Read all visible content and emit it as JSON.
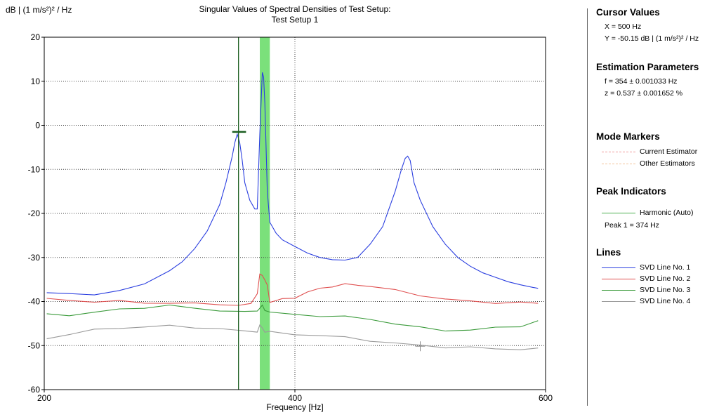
{
  "chart_data": {
    "type": "line",
    "title": "Singular Values of Spectral Densities of Test Setup:",
    "subtitle": "Test Setup 1",
    "ylabel": "dB | (1 m/s²)² / Hz",
    "xlabel": "Frequency [Hz]",
    "xlim": [
      200,
      600
    ],
    "ylim": [
      -60,
      20
    ],
    "xticks": [
      200,
      400,
      600
    ],
    "yticks": [
      20,
      10,
      0,
      -10,
      -20,
      -30,
      -40,
      -50,
      -60
    ],
    "grid": true,
    "cursor_x": 354,
    "cursor_line_x": 355,
    "highlight_band": [
      372,
      380
    ],
    "dotted_marker_x": 400,
    "peak_marker": {
      "x1": 350,
      "x2": 361,
      "y": -1.5
    },
    "series": [
      {
        "name": "SVD Line No. 1",
        "color": "#2b3fe0",
        "x": [
          202,
          220,
          240,
          260,
          280,
          300,
          310,
          320,
          330,
          340,
          345,
          350,
          352,
          354,
          356,
          358,
          360,
          364,
          368,
          370,
          372,
          374,
          375,
          376,
          378,
          380,
          385,
          390,
          400,
          410,
          420,
          430,
          440,
          450,
          460,
          470,
          480,
          485,
          488,
          490,
          492,
          495,
          500,
          510,
          520,
          530,
          540,
          550,
          560,
          570,
          580,
          590,
          594
        ],
        "y": [
          -38,
          -38.2,
          -38.5,
          -37.5,
          -36,
          -33,
          -31,
          -28,
          -24,
          -18,
          -13,
          -7,
          -4,
          -2,
          -4,
          -8,
          -13,
          -17,
          -19,
          -19,
          -2,
          12,
          11,
          5,
          -15,
          -22,
          -24.5,
          -26,
          -27.5,
          -29,
          -30,
          -30.5,
          -30.6,
          -30,
          -27,
          -23,
          -15,
          -10,
          -7.5,
          -7,
          -8,
          -13,
          -17,
          -23,
          -27,
          -30,
          -32,
          -33.5,
          -34.5,
          -35.5,
          -36.2,
          -36.8,
          -37
        ]
      },
      {
        "name": "SVD Line No. 2",
        "color": "#e05050",
        "x": [
          202,
          220,
          240,
          260,
          280,
          300,
          320,
          340,
          355,
          365,
          370,
          372,
          374,
          376,
          378,
          380,
          385,
          390,
          400,
          410,
          420,
          430,
          440,
          450,
          460,
          480,
          500,
          520,
          540,
          560,
          580,
          594
        ],
        "y": [
          -39.5,
          -39.7,
          -40,
          -40,
          -40.2,
          -40.4,
          -40.5,
          -40.5,
          -41,
          -40.5,
          -38,
          -34,
          -34,
          -35,
          -36.5,
          -40,
          -39.8,
          -39.5,
          -39,
          -38,
          -37,
          -36.5,
          -36.2,
          -36.2,
          -36.5,
          -37.5,
          -38.5,
          -39.5,
          -40,
          -40.2,
          -40.3,
          -40.4
        ]
      },
      {
        "name": "SVD Line No. 3",
        "color": "#3a9a3a",
        "x": [
          202,
          220,
          240,
          260,
          280,
          300,
          320,
          340,
          360,
          370,
          372,
          374,
          376,
          380,
          400,
          420,
          440,
          460,
          480,
          500,
          520,
          540,
          560,
          580,
          594
        ],
        "y": [
          -43,
          -43,
          -42.5,
          -41.8,
          -41.3,
          -41,
          -41.5,
          -42,
          -42.5,
          -42,
          -41.5,
          -41,
          -41.8,
          -42.5,
          -43,
          -43.2,
          -43.5,
          -44,
          -45,
          -46,
          -46.5,
          -46.5,
          -46,
          -45.5,
          -44.5
        ]
      },
      {
        "name": "SVD Line No. 4",
        "color": "#9a9a9a",
        "x": [
          202,
          220,
          240,
          260,
          280,
          300,
          320,
          340,
          360,
          370,
          372,
          374,
          376,
          380,
          400,
          420,
          440,
          460,
          480,
          500,
          520,
          540,
          560,
          580,
          594
        ],
        "y": [
          -48.5,
          -47.3,
          -46.5,
          -46,
          -45.7,
          -45.6,
          -45.8,
          -46.2,
          -46.8,
          -46.7,
          -45.5,
          -46,
          -46.8,
          -47,
          -47.4,
          -47.7,
          -48.2,
          -48.8,
          -49.5,
          -50,
          -50.3,
          -50.5,
          -50.7,
          -50.8,
          -50.8
        ]
      }
    ],
    "cursor_cross": {
      "x": 500,
      "y": -50.15
    }
  },
  "side_panel": {
    "cursor_values": {
      "title": "Cursor Values",
      "x_text": "X = 500 Hz",
      "y_text": "Y = -50.15 dB | (1 m/s²)² / Hz"
    },
    "estimation_parameters": {
      "title": "Estimation Parameters",
      "f_text": "f = 354 ± 0.001033 Hz",
      "z_text": "z = 0.537 ± 0.001652 %"
    },
    "mode_markers": {
      "title": "Mode Markers",
      "items": [
        {
          "label": "Current Estimator",
          "color": "#f09a9a"
        },
        {
          "label": "Other Estimators",
          "color": "#f2c49a"
        }
      ]
    },
    "peak_indicators": {
      "title": "Peak Indicators",
      "item_label": "Harmonic (Auto)",
      "item_color": "#4caf50",
      "peak_text": "Peak 1 = 374 Hz"
    },
    "lines": {
      "title": "Lines",
      "items": [
        {
          "label": "SVD Line No. 1",
          "color": "#2b3fe0"
        },
        {
          "label": "SVD Line No. 2",
          "color": "#e05050"
        },
        {
          "label": "SVD Line No. 3",
          "color": "#3a9a3a"
        },
        {
          "label": "SVD Line No. 4",
          "color": "#9a9a9a"
        }
      ]
    }
  }
}
